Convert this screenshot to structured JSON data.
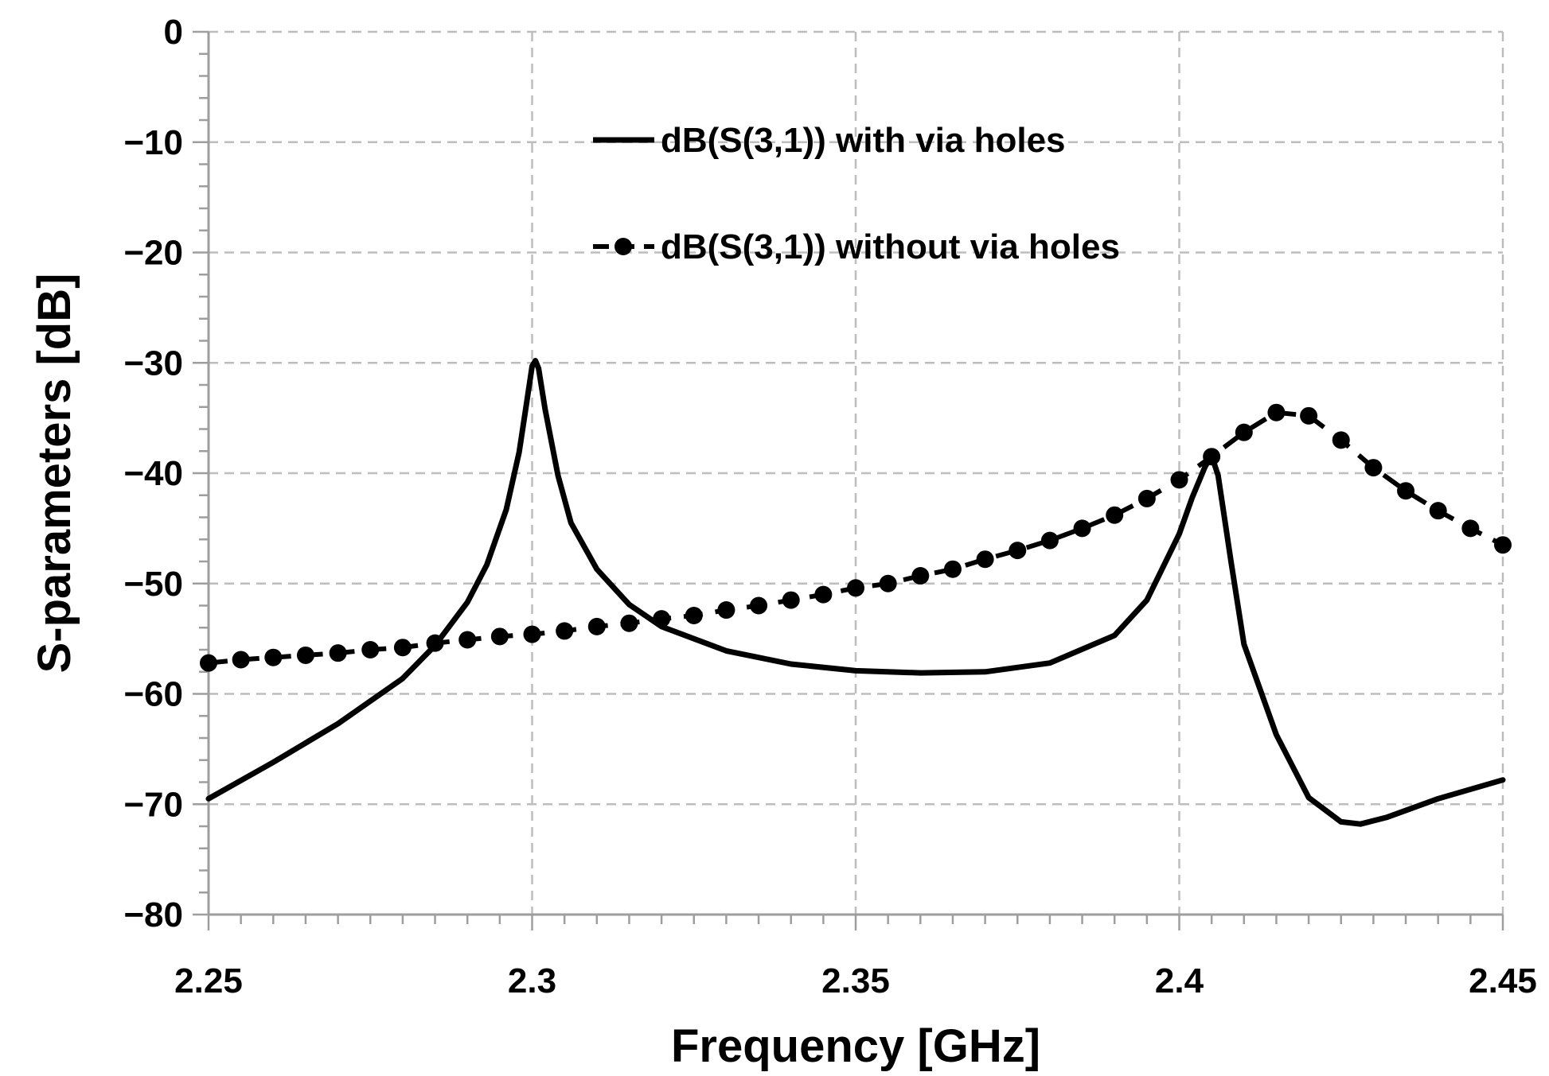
{
  "chart_data": {
    "type": "line",
    "xlabel": "Frequency [GHz]",
    "ylabel": "S-parameters [dB]",
    "xlim": [
      2.25,
      2.45
    ],
    "ylim": [
      -80,
      0
    ],
    "x_ticks": [
      2.25,
      2.3,
      2.35,
      2.4,
      2.45
    ],
    "x_tick_labels": [
      "2.25",
      "2.3",
      "2.35",
      "2.4",
      "2.45"
    ],
    "y_ticks": [
      0,
      -10,
      -20,
      -30,
      -40,
      -50,
      -60,
      -70,
      -80
    ],
    "y_tick_labels": [
      "0",
      "−10",
      "−20",
      "−30",
      "−40",
      "−50",
      "−60",
      "−70",
      "−80"
    ],
    "grid": true,
    "legend_position": "top-center",
    "series": [
      {
        "name": "dB(S(3,1)) with via holes",
        "style": "solid",
        "color": "#000000",
        "x": [
          2.25,
          2.26,
          2.27,
          2.28,
          2.285,
          2.29,
          2.293,
          2.296,
          2.298,
          2.299,
          2.3,
          2.3005,
          2.301,
          2.302,
          2.304,
          2.306,
          2.31,
          2.315,
          2.32,
          2.33,
          2.34,
          2.35,
          2.36,
          2.37,
          2.38,
          2.39,
          2.395,
          2.4,
          2.402,
          2.404,
          2.405,
          2.406,
          2.408,
          2.41,
          2.415,
          2.42,
          2.425,
          2.428,
          2.432,
          2.44,
          2.45
        ],
        "y": [
          -69.5,
          -66.2,
          -62.7,
          -58.6,
          -55.6,
          -51.7,
          -48.3,
          -43.3,
          -38.1,
          -34.2,
          -30.3,
          -29.8,
          -30.5,
          -34.2,
          -40.2,
          -44.5,
          -48.7,
          -51.9,
          -53.9,
          -56.1,
          -57.3,
          -57.9,
          -58.1,
          -58.0,
          -57.2,
          -54.7,
          -51.5,
          -45.5,
          -42.2,
          -39.4,
          -38.4,
          -40.2,
          -48.0,
          -55.5,
          -63.7,
          -69.4,
          -71.6,
          -71.8,
          -71.2,
          -69.5,
          -67.8
        ]
      },
      {
        "name": "dB(S(3,1)) without via holes",
        "style": "dashed-marker",
        "color": "#000000",
        "x": [
          2.25,
          2.255,
          2.26,
          2.265,
          2.27,
          2.275,
          2.28,
          2.285,
          2.29,
          2.295,
          2.3,
          2.305,
          2.31,
          2.315,
          2.32,
          2.325,
          2.33,
          2.335,
          2.34,
          2.345,
          2.35,
          2.355,
          2.36,
          2.365,
          2.37,
          2.375,
          2.38,
          2.385,
          2.39,
          2.395,
          2.4,
          2.405,
          2.41,
          2.415,
          2.42,
          2.425,
          2.43,
          2.435,
          2.44,
          2.445,
          2.45
        ],
        "y": [
          -57.2,
          -56.9,
          -56.7,
          -56.5,
          -56.3,
          -56.0,
          -55.8,
          -55.4,
          -55.1,
          -54.8,
          -54.6,
          -54.3,
          -53.9,
          -53.6,
          -53.2,
          -52.9,
          -52.4,
          -52.0,
          -51.5,
          -51.0,
          -50.4,
          -50.0,
          -49.3,
          -48.7,
          -47.8,
          -47.0,
          -46.1,
          -45.0,
          -43.8,
          -42.3,
          -40.6,
          -38.5,
          -36.3,
          -34.5,
          -34.8,
          -37.0,
          -39.5,
          -41.6,
          -43.4,
          -45.0,
          -46.5
        ]
      }
    ]
  }
}
